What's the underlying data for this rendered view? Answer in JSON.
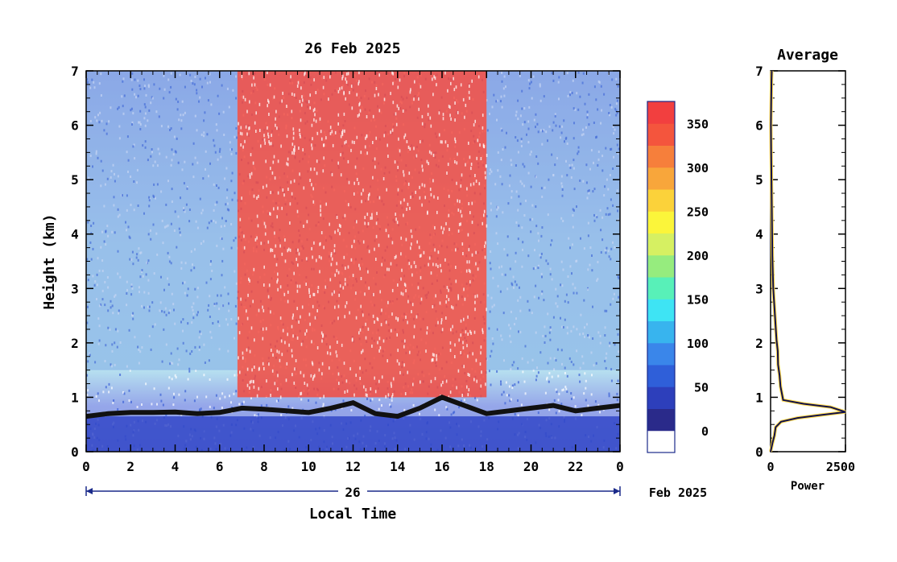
{
  "chart_data": [
    {
      "type": "heatmap",
      "title": "26 Feb 2025",
      "ylabel": "Height (km)",
      "xlabel": "Local Time",
      "xlim": [
        0,
        24
      ],
      "ylim": [
        0,
        7
      ],
      "x_ticks": [
        "0",
        "2",
        "4",
        "6",
        "8",
        "10",
        "12",
        "14",
        "16",
        "18",
        "20",
        "22",
        "0"
      ],
      "y_ticks": [
        "0",
        "1",
        "2",
        "3",
        "4",
        "5",
        "6",
        "7"
      ],
      "date_bar": {
        "day_label": "26",
        "month_label": "Feb 2025"
      },
      "colorbar": {
        "ticks": [
          "0",
          "50",
          "100",
          "150",
          "200",
          "250",
          "300",
          "350"
        ],
        "range": [
          0,
          375
        ],
        "colors": [
          "#ffffff",
          "#2a2a8a",
          "#2d3fbb",
          "#2f5fd9",
          "#3a86ea",
          "#38b4ee",
          "#3ee4f4",
          "#58f0b8",
          "#96ec7e",
          "#d6f062",
          "#fbf53a",
          "#fbd23a",
          "#f8a63b",
          "#f67f3b",
          "#f4553d",
          "#f23f3f"
        ]
      },
      "regions": [
        {
          "name": "high scattering (red)",
          "x_range": [
            6.8,
            18.0
          ],
          "y_range": [
            1.0,
            7.0
          ]
        },
        {
          "name": "low scattering (blue)",
          "x_range": [
            0,
            6.8
          ],
          "y_range": [
            1.5,
            7.0
          ]
        },
        {
          "name": "low scattering (blue)",
          "x_range": [
            18.0,
            24
          ],
          "y_range": [
            1.5,
            7.0
          ]
        }
      ],
      "cloud_layer": {
        "name": "cloud base (black)",
        "x": [
          0,
          1,
          2,
          3,
          4,
          5,
          6,
          7,
          8,
          9,
          10,
          11,
          12,
          13,
          14,
          15,
          16,
          17,
          18,
          19,
          20,
          21,
          22,
          23,
          24
        ],
        "y": [
          0.65,
          0.7,
          0.72,
          0.72,
          0.73,
          0.7,
          0.72,
          0.8,
          0.78,
          0.75,
          0.72,
          0.8,
          0.9,
          0.7,
          0.65,
          0.8,
          1.0,
          0.85,
          0.7,
          0.75,
          0.8,
          0.85,
          0.75,
          0.8,
          0.85
        ]
      }
    },
    {
      "type": "line",
      "title": "Average",
      "xlabel": "Power",
      "ylabel": "",
      "xlim": [
        0,
        2500
      ],
      "ylim": [
        0,
        7
      ],
      "x_ticks": [
        "0",
        "2500"
      ],
      "y_ticks": [
        "0",
        "1",
        "2",
        "3",
        "4",
        "5",
        "6",
        "7"
      ],
      "series": [
        {
          "x": [
            0,
            60,
            130,
            170,
            350,
            900,
            2500,
            2000,
            1100,
            420,
            330,
            300,
            250,
            240,
            200,
            170,
            90,
            60,
            40,
            20,
            10,
            20,
            30,
            40
          ],
          "y": [
            0.0,
            0.15,
            0.3,
            0.45,
            0.55,
            0.62,
            0.73,
            0.82,
            0.88,
            0.95,
            1.2,
            1.4,
            1.6,
            1.85,
            2.05,
            2.3,
            3.0,
            3.6,
            4.5,
            5.5,
            6.0,
            6.4,
            6.8,
            7.0
          ]
        }
      ]
    }
  ]
}
